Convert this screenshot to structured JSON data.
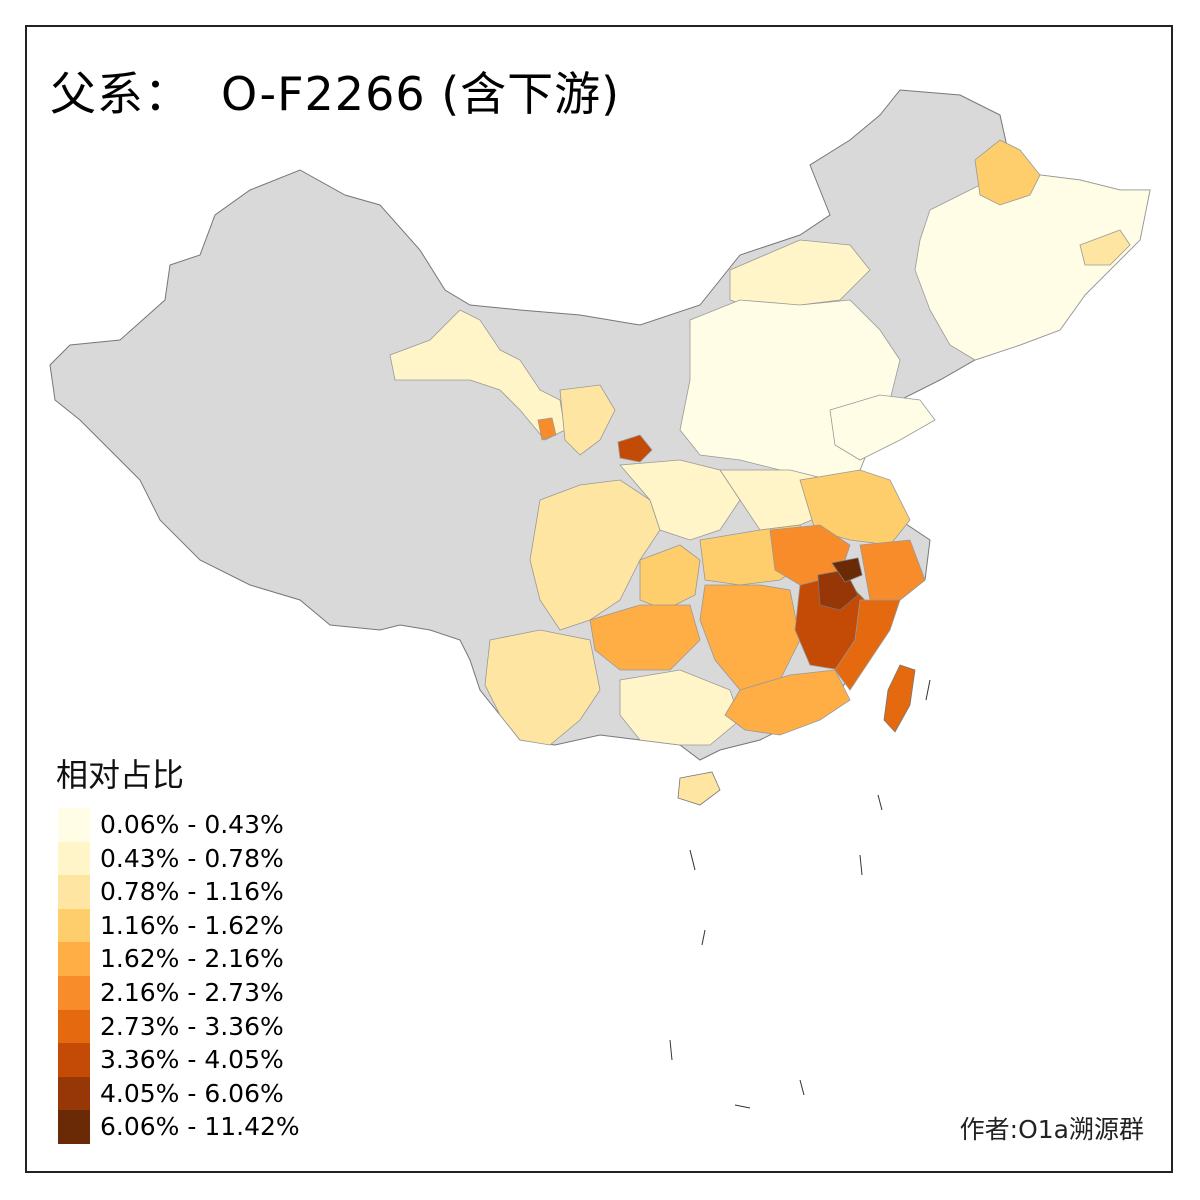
{
  "title": {
    "label": "父系：",
    "haplogroup": "O-F2266 (含下游)"
  },
  "legend": {
    "title": "相对占比",
    "classes": [
      {
        "label": "0.06% - 0.43%",
        "color": "#fffde6"
      },
      {
        "label": "0.43% - 0.78%",
        "color": "#fff5c9"
      },
      {
        "label": "0.78% - 1.16%",
        "color": "#fee6a2"
      },
      {
        "label": "1.16% - 1.62%",
        "color": "#fece6c"
      },
      {
        "label": "1.62% - 2.16%",
        "color": "#feae45"
      },
      {
        "label": "2.16% - 2.73%",
        "color": "#f88c2a"
      },
      {
        "label": "2.73% - 3.36%",
        "color": "#e4690f"
      },
      {
        "label": "3.36% - 4.05%",
        "color": "#c44b05"
      },
      {
        "label": "4.05% - 6.06%",
        "color": "#973606"
      },
      {
        "label": "6.06% - 11.42%",
        "color": "#6b2a06"
      }
    ],
    "no_data_color": "#d9d9d9"
  },
  "author": "作者:O1a溯源群"
}
